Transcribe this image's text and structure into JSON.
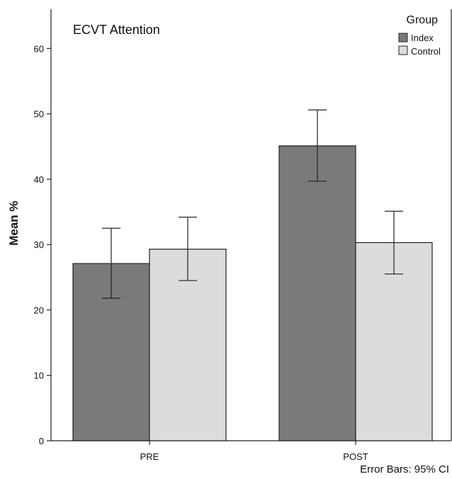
{
  "chart_data": {
    "type": "bar",
    "title": "ECVT Attention",
    "xlabel": "",
    "ylabel": "Mean %",
    "categories": [
      "PRE",
      "POST"
    ],
    "ylim": [
      0,
      66
    ],
    "yticks": [
      0,
      10,
      20,
      30,
      40,
      50,
      60
    ],
    "legend_title": "Group",
    "legend_position": "top-right",
    "grid": false,
    "series": [
      {
        "name": "Index",
        "color": "#7a7a7d",
        "values": [
          27.1,
          45.1
        ],
        "ci_lower": [
          21.8,
          39.7
        ],
        "ci_upper": [
          32.5,
          50.6
        ]
      },
      {
        "name": "Control",
        "color": "#dcdcdc",
        "values": [
          29.3,
          30.3
        ],
        "ci_lower": [
          24.5,
          25.5
        ],
        "ci_upper": [
          34.2,
          35.1
        ]
      }
    ],
    "note": "Error Bars: 95% CI"
  }
}
